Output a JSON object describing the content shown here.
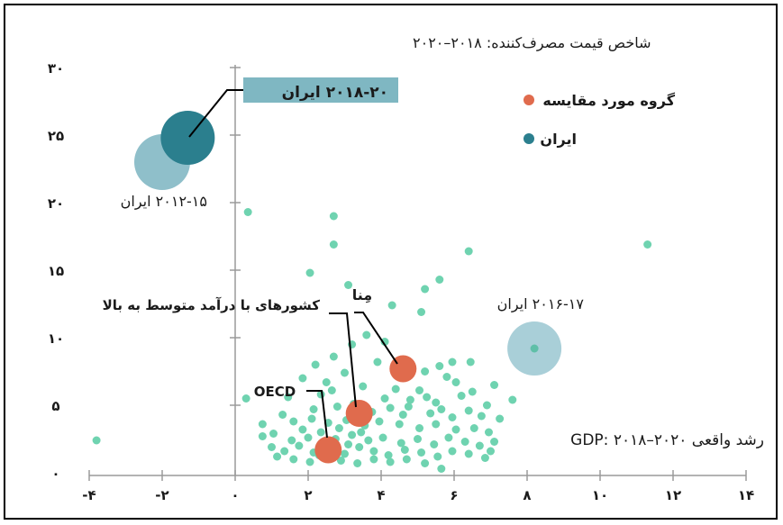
{
  "chart_data": {
    "type": "scatter",
    "title": "شاخص قیمت مصرف‌کننده: ۲۰۱۸–۲۰۲۰",
    "xlabel": "رشد واقعی GDP: ۲۰۱۸–۲۰۲۰",
    "ylabel": "",
    "xlim": [
      -4,
      14
    ],
    "ylim": [
      0,
      30
    ],
    "x_ticks": [
      -4,
      -2,
      0,
      2,
      4,
      6,
      8,
      10,
      12,
      14
    ],
    "x_tick_labels": [
      "-۴",
      "-۲",
      "۰",
      "۲",
      "۴",
      "۶",
      "۸",
      "۱۰",
      "۱۲",
      "۱۴"
    ],
    "y_ticks": [
      0,
      5,
      10,
      15,
      20,
      25,
      30
    ],
    "y_tick_labels": [
      "۰",
      "۵",
      "۱۰",
      "۱۵",
      "۲۰",
      "۲۵",
      "۳۰"
    ],
    "grid": false,
    "legend_position": "top-right",
    "legend": [
      {
        "label": "گروه مورد مقایسه",
        "color": "#e06b4d"
      },
      {
        "label": "ایران",
        "color": "#2b7f8e"
      }
    ],
    "colors": {
      "countries": "#6fd3b0",
      "comparison": "#e06b4d",
      "iran_2018_20": "#2b7f8e",
      "iran_2012_15": "#8fbfca",
      "iran_2016_17": "#a9cfd8",
      "highlight_box": "#7fb7c2"
    },
    "country_points": [
      {
        "x": 0.35,
        "y": 19.3
      },
      {
        "x": 2.7,
        "y": 19
      },
      {
        "x": 2.7,
        "y": 16.9
      },
      {
        "x": 6.4,
        "y": 16.4
      },
      {
        "x": 11.3,
        "y": 16.9
      },
      {
        "x": 2.05,
        "y": 14.8
      },
      {
        "x": 3.1,
        "y": 13.9
      },
      {
        "x": 5.6,
        "y": 14.3
      },
      {
        "x": 5.2,
        "y": 13.6
      },
      {
        "x": -3.8,
        "y": 2.4
      },
      {
        "x": 0.3,
        "y": 5.5
      },
      {
        "x": 0.75,
        "y": 3.6
      },
      {
        "x": 0.75,
        "y": 2.7
      },
      {
        "x": 4.3,
        "y": 12.4
      },
      {
        "x": 5.1,
        "y": 11.9
      },
      {
        "x": 3.6,
        "y": 10.2
      },
      {
        "x": 3.2,
        "y": 9.5
      },
      {
        "x": 4.1,
        "y": 9.7
      },
      {
        "x": 2.7,
        "y": 8.6
      },
      {
        "x": 2.2,
        "y": 8
      },
      {
        "x": 3.9,
        "y": 8.2
      },
      {
        "x": 4.7,
        "y": 7.7
      },
      {
        "x": 5.2,
        "y": 7.5
      },
      {
        "x": 5.6,
        "y": 7.9
      },
      {
        "x": 5.95,
        "y": 8.2
      },
      {
        "x": 6.45,
        "y": 8.2
      },
      {
        "x": 5.8,
        "y": 7.1
      },
      {
        "x": 6.05,
        "y": 6.7
      },
      {
        "x": 7.1,
        "y": 6.5
      },
      {
        "x": 7.6,
        "y": 5.4
      },
      {
        "x": 1.45,
        "y": 5.6
      },
      {
        "x": 2.35,
        "y": 5.8
      },
      {
        "x": 2.5,
        "y": 6.7
      },
      {
        "x": 3.5,
        "y": 6.4
      },
      {
        "x": 4.4,
        "y": 6.2
      },
      {
        "x": 5.05,
        "y": 6.1
      },
      {
        "x": 4.8,
        "y": 5.4
      },
      {
        "x": 5.5,
        "y": 5.2
      },
      {
        "x": 6.2,
        "y": 5.7
      },
      {
        "x": 6.9,
        "y": 5
      },
      {
        "x": 2.15,
        "y": 4.7
      },
      {
        "x": 2.8,
        "y": 4.9
      },
      {
        "x": 3.25,
        "y": 5.1
      },
      {
        "x": 3.75,
        "y": 4.5
      },
      {
        "x": 4.1,
        "y": 5.5
      },
      {
        "x": 4.25,
        "y": 4.8
      },
      {
        "x": 4.6,
        "y": 4.3
      },
      {
        "x": 5.35,
        "y": 4.4
      },
      {
        "x": 5.65,
        "y": 4.7
      },
      {
        "x": 5.95,
        "y": 4.1
      },
      {
        "x": 6.4,
        "y": 4.6
      },
      {
        "x": 6.75,
        "y": 4.2
      },
      {
        "x": 7.25,
        "y": 4
      },
      {
        "x": 1.6,
        "y": 3.8
      },
      {
        "x": 2.1,
        "y": 4
      },
      {
        "x": 2.55,
        "y": 3.7
      },
      {
        "x": 3.05,
        "y": 3.9
      },
      {
        "x": 3.55,
        "y": 3.5
      },
      {
        "x": 3.95,
        "y": 3.8
      },
      {
        "x": 4.5,
        "y": 3.6
      },
      {
        "x": 5.05,
        "y": 3.3
      },
      {
        "x": 5.5,
        "y": 3.6
      },
      {
        "x": 6.05,
        "y": 3.2
      },
      {
        "x": 6.55,
        "y": 3.3
      },
      {
        "x": 6.95,
        "y": 3
      },
      {
        "x": 1.05,
        "y": 2.9
      },
      {
        "x": 1.55,
        "y": 2.4
      },
      {
        "x": 2.0,
        "y": 2.6
      },
      {
        "x": 2.35,
        "y": 3
      },
      {
        "x": 2.75,
        "y": 2.5
      },
      {
        "x": 3.2,
        "y": 2.8
      },
      {
        "x": 3.65,
        "y": 2.4
      },
      {
        "x": 4.05,
        "y": 2.6
      },
      {
        "x": 4.55,
        "y": 2.2
      },
      {
        "x": 5.0,
        "y": 2.5
      },
      {
        "x": 5.45,
        "y": 2.1
      },
      {
        "x": 5.85,
        "y": 2.6
      },
      {
        "x": 6.3,
        "y": 2.3
      },
      {
        "x": 6.7,
        "y": 2.0
      },
      {
        "x": 7.1,
        "y": 2.3
      },
      {
        "x": 1.0,
        "y": 1.9
      },
      {
        "x": 1.35,
        "y": 1.6
      },
      {
        "x": 1.75,
        "y": 2.0
      },
      {
        "x": 2.15,
        "y": 1.5
      },
      {
        "x": 2.6,
        "y": 1.8
      },
      {
        "x": 3.0,
        "y": 1.4
      },
      {
        "x": 3.4,
        "y": 1.9
      },
      {
        "x": 3.8,
        "y": 1.6
      },
      {
        "x": 4.2,
        "y": 1.3
      },
      {
        "x": 4.65,
        "y": 1.7
      },
      {
        "x": 5.1,
        "y": 1.5
      },
      {
        "x": 5.55,
        "y": 1.2
      },
      {
        "x": 5.95,
        "y": 1.6
      },
      {
        "x": 6.4,
        "y": 1.4
      },
      {
        "x": 6.85,
        "y": 1.1
      },
      {
        "x": 1.6,
        "y": 1.0
      },
      {
        "x": 2.05,
        "y": 0.8
      },
      {
        "x": 2.5,
        "y": 1.1
      },
      {
        "x": 2.9,
        "y": 0.9
      },
      {
        "x": 3.35,
        "y": 0.7
      },
      {
        "x": 3.8,
        "y": 1.0
      },
      {
        "x": 4.25,
        "y": 0.8
      },
      {
        "x": 4.7,
        "y": 1.0
      },
      {
        "x": 5.2,
        "y": 0.7
      },
      {
        "x": 5.65,
        "y": 0.3
      },
      {
        "x": 2.3,
        "y": 1.3
      },
      {
        "x": 2.45,
        "y": 2.2
      },
      {
        "x": 1.85,
        "y": 3.2
      },
      {
        "x": 2.85,
        "y": 3.3
      },
      {
        "x": 3.1,
        "y": 2.1
      },
      {
        "x": 3.45,
        "y": 3.0
      },
      {
        "x": 1.3,
        "y": 4.3
      },
      {
        "x": 4.75,
        "y": 4.9
      },
      {
        "x": 5.25,
        "y": 5.6
      },
      {
        "x": 2.65,
        "y": 6.1
      },
      {
        "x": 1.85,
        "y": 7.0
      },
      {
        "x": 3.0,
        "y": 7.4
      },
      {
        "x": 6.5,
        "y": 6.0
      },
      {
        "x": 1.15,
        "y": 1.2
      },
      {
        "x": 7.0,
        "y": 1.6
      }
    ],
    "iran_points": [
      {
        "label": "۲۰۱۸-۲۰ ایران",
        "x": -1.3,
        "y": 24.8,
        "color": "#2b7f8e"
      },
      {
        "label": "۲۰۱۲-۱۵ ایران",
        "x": -2.0,
        "y": 23.0,
        "color": "#8fbfca"
      },
      {
        "label": "۲۰۱۶-۱۷ ایران",
        "x": 8.2,
        "y": 9.2,
        "color": "#a9cfd8"
      }
    ],
    "comparison_points": [
      {
        "label": "مِنا",
        "x": 4.6,
        "y": 7.7
      },
      {
        "label": "کشورهای با درآمد متوسط به بالا",
        "x": 3.4,
        "y": 4.4
      },
      {
        "label": "OECD",
        "x": 2.55,
        "y": 1.7
      }
    ]
  }
}
